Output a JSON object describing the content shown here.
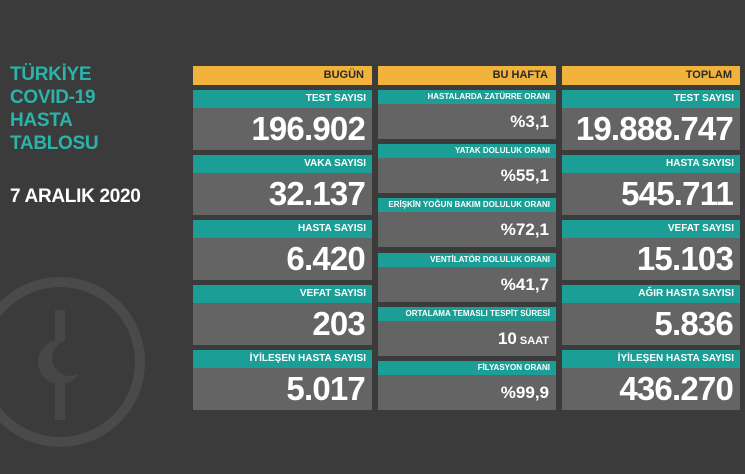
{
  "title": [
    "TÜRKİYE",
    "COVID-19",
    "HASTA",
    "TABLOSU"
  ],
  "date": "7 ARALIK 2020",
  "columns": [
    {
      "header": "BUGÜN",
      "cards": [
        {
          "label": "TEST SAYISI",
          "value": "196.902"
        },
        {
          "label": "VAKA SAYISI",
          "value": "32.137"
        },
        {
          "label": "HASTA SAYISI",
          "value": "6.420"
        },
        {
          "label": "VEFAT SAYISI",
          "value": "203"
        },
        {
          "label": "İYİLEŞEN HASTA SAYISI",
          "value": "5.017"
        }
      ]
    },
    {
      "header": "BU HAFTA",
      "cards": [
        {
          "label": "HASTALARDA ZATÜRRE ORANI",
          "value": "%3,1"
        },
        {
          "label": "YATAK DOLULUK ORANI",
          "value": "%55,1"
        },
        {
          "label": "ERİŞKİN YOĞUN BAKIM DOLULUK ORANI",
          "value": "%72,1"
        },
        {
          "label": "VENTİLATÖR DOLULUK ORANI",
          "value": "%41,7"
        },
        {
          "label": "ORTALAMA TEMASLI TESPİT SÜRESİ",
          "value": "10",
          "unit": "SAAT"
        },
        {
          "label": "FİLYASYON ORANI",
          "value": "%99,9"
        }
      ]
    },
    {
      "header": "TOPLAM",
      "cards": [
        {
          "label": "TEST SAYISI",
          "value": "19.888.747"
        },
        {
          "label": "HASTA SAYISI",
          "value": "545.711"
        },
        {
          "label": "VEFAT SAYISI",
          "value": "15.103"
        },
        {
          "label": "AĞIR HASTA SAYISI",
          "value": "5.836"
        },
        {
          "label": "İYİLEŞEN HASTA SAYISI",
          "value": "436.270"
        }
      ]
    }
  ]
}
